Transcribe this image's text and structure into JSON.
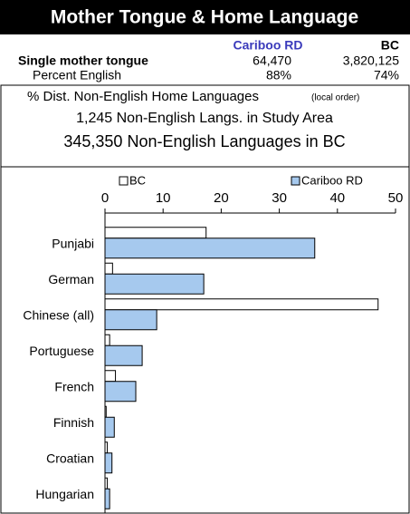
{
  "header": {
    "title": "Mother Tongue & Home Language",
    "columns": [
      "Cariboo RD",
      "BC"
    ],
    "rows": [
      {
        "label": "Single mother tongue",
        "values": [
          "64,470",
          "3,820,125"
        ]
      },
      {
        "label": "Percent English",
        "values": [
          "88%",
          "74%"
        ]
      }
    ],
    "subtitle": "% Dist. Non-English Home Languages",
    "subtitle_note": "(local order)",
    "lines": [
      "1,245 Non-English Langs. in Study Area",
      "345,350 Non-English Languages in BC"
    ]
  },
  "chart_data": {
    "type": "hbar",
    "categories": [
      "Punjabi",
      "German",
      "Chinese (all)",
      "Portuguese",
      "French",
      "Finnish",
      "Croatian",
      "Hungarian"
    ],
    "series": [
      {
        "name": "BC",
        "color": "#ffffff",
        "values": [
          17.4,
          1.3,
          47.0,
          0.8,
          1.8,
          0.2,
          0.4,
          0.4
        ]
      },
      {
        "name": "Cariboo RD",
        "color": "#a6c9ee",
        "values": [
          36.1,
          17.0,
          8.9,
          6.4,
          5.3,
          1.6,
          1.2,
          0.8
        ]
      }
    ],
    "xlim": [
      0,
      50
    ],
    "xticks": [
      0,
      10,
      20,
      30,
      40,
      50
    ],
    "legend": "top"
  }
}
